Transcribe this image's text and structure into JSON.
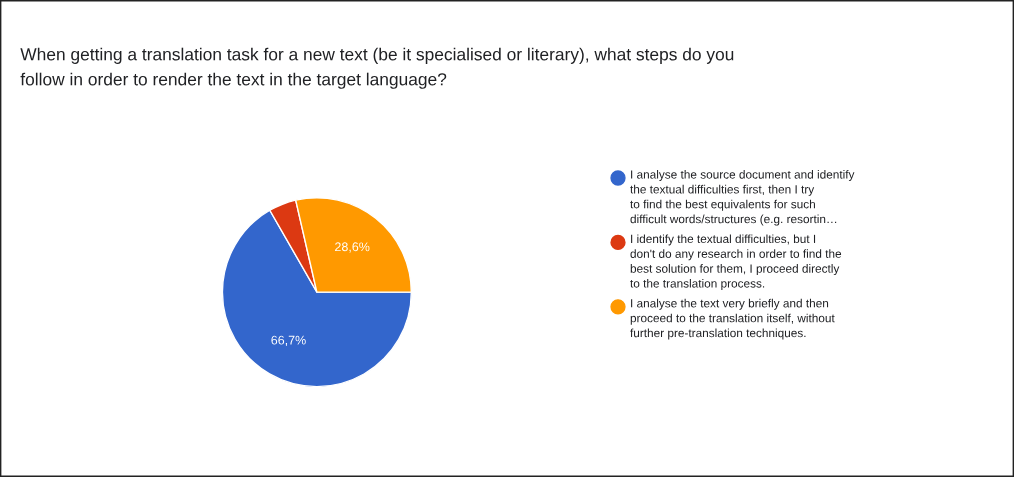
{
  "chart_data": {
    "type": "pie",
    "title": "When getting a translation task for a new text (be it specialised or literary), what steps do you follow in order to render the text in the target language?",
    "categories": [
      "I analyse the source document and identify the textual difficulties first, then I try to find the best equivalents for such difficult words/structures (e.g. resortin…",
      "I identify the textual difficulties, but I don't do any research in order to find the best solution for them, I proceed directly to the translation process.",
      "I analyse the text very briefly and then proceed to the translation itself, without further pre-translation techniques."
    ],
    "values": [
      66.7,
      4.7,
      28.6
    ],
    "colors": [
      "#3366cc",
      "#dc3912",
      "#ff9900"
    ],
    "value_labels": [
      "66,7%",
      null,
      "28,6%"
    ],
    "legend": "right"
  }
}
